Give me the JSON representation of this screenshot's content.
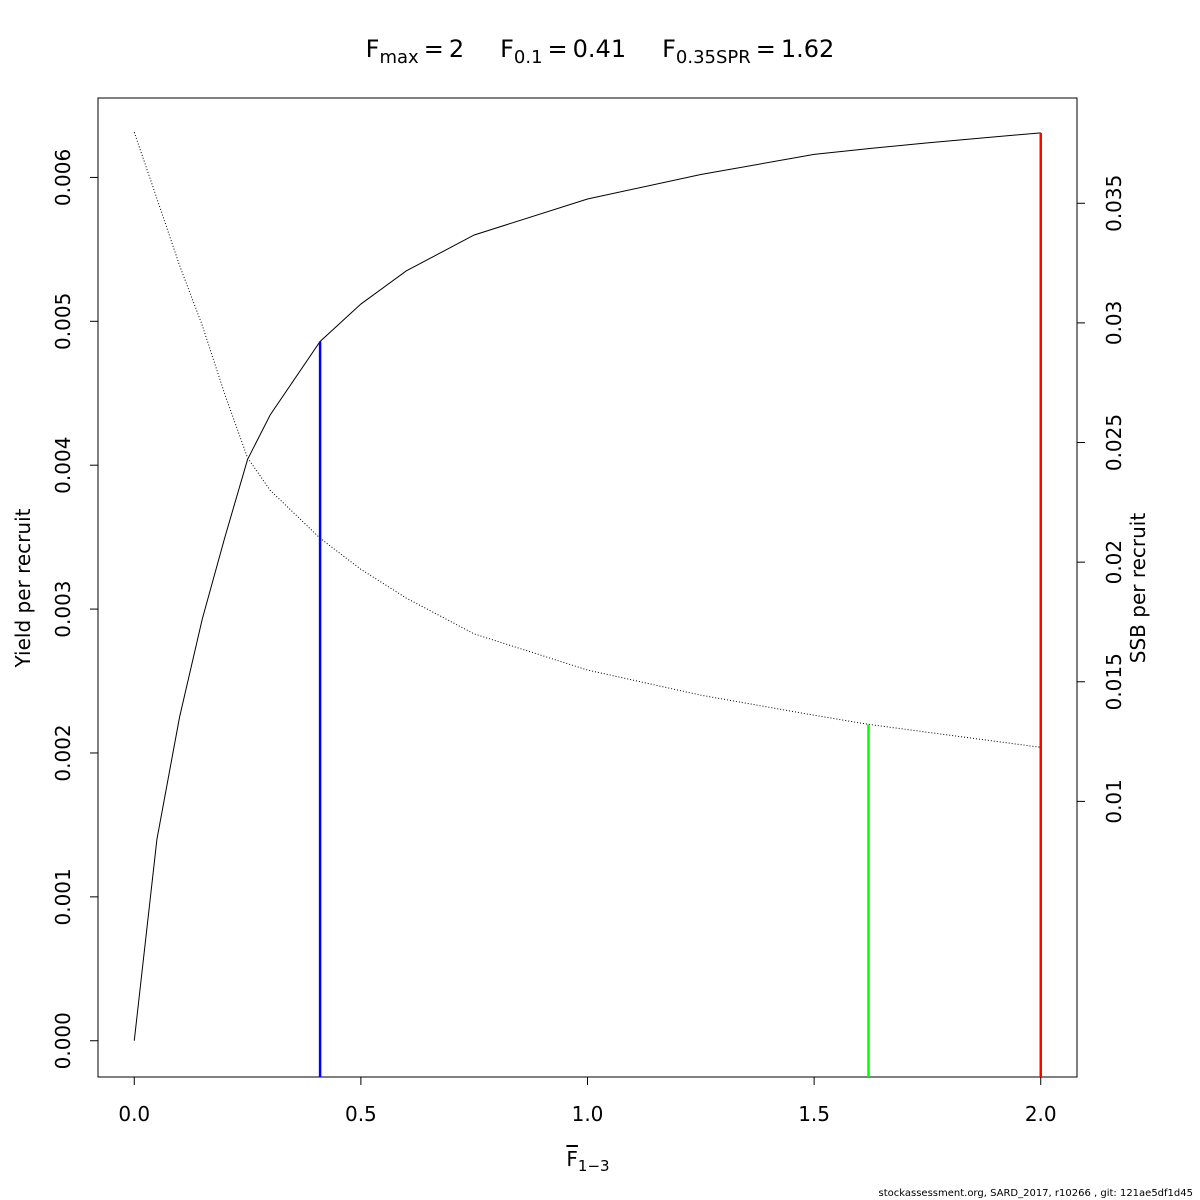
{
  "chart_data": {
    "type": "line",
    "markers": [
      {
        "symbol": "F",
        "subscript": "max",
        "relation": "=",
        "value": 2,
        "color": "#ff0000",
        "top": 0.00631,
        "axis": "y"
      },
      {
        "symbol": "F",
        "subscript": "0.1",
        "relation": "=",
        "value": 0.41,
        "color": "#0000ff",
        "top": 0.00486,
        "axis": "y"
      },
      {
        "symbol": "F",
        "subscript": "0.35SPR",
        "relation": "=",
        "value": 1.62,
        "color": "#00ff00",
        "top": 0.01322,
        "axis": "y2"
      }
    ],
    "xlabel": {
      "symbol": "F",
      "subscript": "1−3"
    },
    "ylabel": "Yield per recruit",
    "y2label": "SSB per recruit",
    "footer": "stockassessment.org, SARD_2017, r10266 , git: 121ae5df1d45",
    "x": [
      0,
      0.05,
      0.1,
      0.15,
      0.2,
      0.25,
      0.3,
      0.41,
      0.5,
      0.6,
      0.75,
      1.0,
      1.25,
      1.5,
      1.62,
      1.75,
      2.0
    ],
    "series": [
      {
        "name": "Yield per recruit",
        "color": "#000000",
        "dash": "solid",
        "axis": "y",
        "values": [
          0,
          0.0014,
          0.00225,
          0.00293,
          0.0035,
          0.00404,
          0.00435,
          0.00486,
          0.00512,
          0.00535,
          0.0056,
          0.00585,
          0.00602,
          0.00616,
          0.0062,
          0.00624,
          0.00631
        ]
      },
      {
        "name": "SSB per recruit",
        "color": "#000000",
        "dash": "dotted",
        "axis": "y2",
        "values": [
          0.03797,
          0.0352,
          0.0324,
          0.0299,
          0.027,
          0.02436,
          0.023,
          0.021,
          0.0197,
          0.0185,
          0.017,
          0.01549,
          0.01444,
          0.0136,
          0.01322,
          0.01289,
          0.01226
        ]
      }
    ],
    "xlim": [
      -0.08,
      2.08
    ],
    "xticks": [
      {
        "value": 0,
        "label": "0.0"
      },
      {
        "value": 0.5,
        "label": "0.5"
      },
      {
        "value": 1,
        "label": "1.0"
      },
      {
        "value": 1.5,
        "label": "1.5"
      },
      {
        "value": 2,
        "label": "2.0"
      }
    ],
    "ylim": [
      -0.000252,
      0.006552
    ],
    "yticks": [
      {
        "value": 0,
        "label": "0.000"
      },
      {
        "value": 0.001,
        "label": "0.001"
      },
      {
        "value": 0.002,
        "label": "0.002"
      },
      {
        "value": 0.003,
        "label": "0.003"
      },
      {
        "value": 0.004,
        "label": "0.004"
      },
      {
        "value": 0.005,
        "label": "0.005"
      },
      {
        "value": 0.006,
        "label": "0.006"
      }
    ],
    "y2lim": [
      -0.00152,
      0.0394
    ],
    "y2ticks": [
      0.01,
      0.015,
      0.02,
      0.025,
      0.03,
      0.035
    ],
    "grid": false
  }
}
